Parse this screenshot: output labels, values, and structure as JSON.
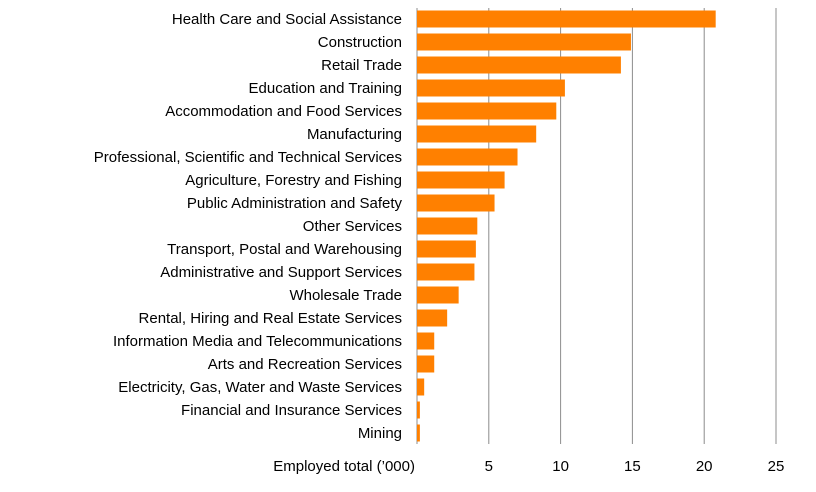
{
  "chart_data": {
    "type": "bar",
    "orientation": "horizontal",
    "title": "",
    "xlabel": "Employed total (’000)",
    "ylabel": "",
    "xlim": [
      0,
      25
    ],
    "x_ticks": [
      5,
      10,
      15,
      20,
      25
    ],
    "grid": "vertical",
    "bar_color": "#FF8000",
    "categories": [
      "Health Care and Social Assistance",
      "Construction",
      "Retail Trade",
      "Education and Training",
      "Accommodation and Food Services",
      "Manufacturing",
      "Professional, Scientific and Technical Services",
      "Agriculture, Forestry and Fishing",
      "Public Administration and Safety",
      "Other Services",
      "Transport, Postal and Warehousing",
      "Administrative and Support Services",
      "Wholesale Trade",
      "Rental, Hiring and Real Estate Services",
      "Information Media and Telecommunications",
      "Arts and Recreation Services",
      "Electricity, Gas, Water and Waste Services",
      "Financial and Insurance Services",
      "Mining"
    ],
    "values": [
      20.8,
      14.9,
      14.2,
      10.3,
      9.7,
      8.3,
      7.0,
      6.1,
      5.4,
      4.2,
      4.1,
      4.0,
      2.9,
      2.1,
      1.2,
      1.2,
      0.5,
      0.2,
      0.2
    ]
  }
}
